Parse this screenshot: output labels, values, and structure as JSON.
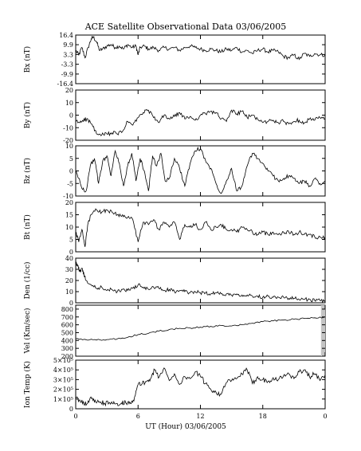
{
  "chart_data": {
    "type": "line",
    "title": "ACE Satellite Observational Data   03/06/2005",
    "xlabel": "UT (Hour)   03/06/2005",
    "x_ticks": [
      "0",
      "6",
      "12",
      "18",
      "0"
    ],
    "xlim": [
      0,
      24
    ],
    "grid": false,
    "panels": [
      {
        "name": "Bx",
        "ylabel": "Bx (nT)",
        "ylim": [
          -16.4,
          16.4
        ],
        "ytick_values": [
          16.4,
          9.9,
          3.3,
          -3.3,
          -9.9,
          -16.4
        ],
        "ytick_labels": [
          "16.4",
          "9.9",
          "3.3",
          "-3.3",
          "-9.9",
          "-16.4"
        ],
        "x": [
          0,
          0.3,
          0.6,
          0.9,
          1.2,
          1.5,
          1.7,
          2.0,
          2.3,
          2.6,
          3.0,
          3.4,
          3.8,
          4.2,
          4.6,
          5.0,
          5.4,
          5.8,
          6.0,
          6.2,
          6.6,
          7.0,
          7.5,
          8.0,
          8.5,
          9.0,
          9.5,
          10.0,
          10.5,
          11.0,
          11.5,
          12.0,
          12.5,
          13.0,
          13.5,
          14.0,
          14.5,
          15.0,
          15.5,
          16.0,
          16.5,
          17.0,
          17.5,
          18.0,
          18.5,
          19.0,
          19.5,
          20.0,
          20.5,
          21.0,
          21.5,
          22.0,
          22.5,
          23.0,
          23.5,
          24.0
        ],
        "y": [
          6,
          3,
          8,
          1,
          8,
          14,
          15,
          12,
          6,
          7,
          9,
          10,
          8,
          9,
          7,
          10,
          8,
          9,
          3,
          8,
          9,
          7,
          8,
          6,
          8,
          7,
          8,
          6,
          8,
          9,
          8,
          7,
          6,
          7,
          6,
          5,
          7,
          6,
          8,
          5,
          6,
          4,
          6,
          7,
          5,
          6,
          5,
          2,
          1,
          3,
          0,
          4,
          2,
          4,
          3,
          3
        ]
      },
      {
        "name": "By",
        "ylabel": "By (nT)",
        "ylim": [
          -20,
          20
        ],
        "ytick_values": [
          20,
          10,
          0,
          -10,
          -20
        ],
        "ytick_labels": [
          "20",
          "10",
          "0",
          "-10",
          "-20"
        ],
        "x": [
          0,
          0.4,
          0.8,
          1.2,
          1.6,
          2.0,
          2.5,
          3.0,
          3.5,
          4.0,
          4.5,
          5.0,
          5.5,
          6.0,
          6.5,
          7.0,
          7.5,
          8.0,
          8.5,
          9.0,
          9.5,
          10.0,
          10.5,
          11.0,
          11.5,
          12.0,
          12.5,
          13.0,
          13.5,
          14.0,
          14.5,
          15.0,
          15.5,
          16.0,
          16.5,
          17.0,
          17.5,
          18.0,
          18.5,
          19.0,
          19.5,
          20.0,
          20.5,
          21.0,
          21.5,
          22.0,
          22.5,
          23.0,
          23.5,
          24.0
        ],
        "y": [
          -5,
          -6,
          -3,
          -4,
          -8,
          -15,
          -16,
          -15,
          -14,
          -15,
          -13,
          -5,
          -8,
          -2,
          2,
          4,
          -2,
          -6,
          0,
          -3,
          -1,
          2,
          -3,
          -1,
          -4,
          0,
          1,
          3,
          2,
          -3,
          -5,
          4,
          1,
          3,
          -2,
          0,
          -3,
          -6,
          -5,
          -4,
          -6,
          -5,
          -7,
          -5,
          -4,
          -6,
          -3,
          -4,
          -2,
          -3
        ]
      },
      {
        "name": "Bz",
        "ylabel": "Bz (nT)",
        "ylim": [
          -10,
          10
        ],
        "ytick_values": [
          10,
          5,
          0,
          -5,
          -10
        ],
        "ytick_labels": [
          "10",
          "5",
          "0",
          "-5",
          "-10"
        ],
        "x": [
          0,
          0.3,
          0.6,
          1.0,
          1.4,
          1.8,
          2.2,
          2.6,
          3.0,
          3.4,
          3.8,
          4.2,
          4.6,
          5.0,
          5.4,
          5.8,
          6.2,
          6.6,
          7.0,
          7.4,
          7.8,
          8.2,
          8.6,
          9.0,
          9.5,
          10.0,
          10.5,
          11.0,
          11.5,
          12.0,
          12.5,
          13.0,
          13.5,
          14.0,
          14.5,
          15.0,
          15.5,
          16.0,
          16.5,
          17.0,
          17.5,
          18.0,
          18.5,
          19.0,
          19.5,
          20.0,
          20.5,
          21.0,
          21.5,
          22.0,
          22.5,
          23.0,
          23.5,
          24.0
        ],
        "y": [
          0,
          -3,
          -7,
          -8,
          2,
          5,
          -5,
          4,
          6,
          -2,
          8,
          3,
          -6,
          2,
          7,
          -4,
          5,
          0,
          -8,
          6,
          2,
          7,
          -4,
          -3,
          5,
          1,
          -6,
          3,
          8,
          9,
          4,
          1,
          -5,
          -9,
          -4,
          1,
          -8,
          -6,
          2,
          7,
          5,
          3,
          0,
          -2,
          -4,
          -3,
          -2,
          -3,
          -5,
          -4,
          -6,
          -3,
          -5,
          -4
        ]
      },
      {
        "name": "Bt",
        "ylabel": "Bt (nT)",
        "ylim": [
          0,
          20
        ],
        "ytick_values": [
          20,
          15,
          10,
          5,
          0
        ],
        "ytick_labels": [
          "20",
          "15",
          "10",
          "5",
          "0"
        ],
        "x": [
          0,
          0.3,
          0.6,
          0.9,
          1.2,
          1.5,
          2.0,
          2.5,
          3.0,
          3.5,
          4.0,
          4.5,
          5.0,
          5.5,
          6.0,
          6.5,
          7.0,
          7.5,
          8.0,
          8.5,
          9.0,
          9.5,
          10.0,
          10.5,
          11.0,
          11.5,
          12.0,
          12.5,
          13.0,
          13.5,
          14.0,
          14.5,
          15.0,
          15.5,
          16.0,
          16.5,
          17.0,
          17.5,
          18.0,
          18.5,
          19.0,
          19.5,
          20.0,
          20.5,
          21.0,
          21.5,
          22.0,
          22.5,
          23.0,
          23.5,
          24.0
        ],
        "y": [
          8,
          4,
          9,
          2,
          12,
          15,
          17,
          16,
          17,
          16,
          15,
          15,
          14,
          13,
          4,
          12,
          11,
          13,
          9,
          12,
          10,
          12,
          5,
          11,
          10,
          11,
          9,
          12,
          9,
          10,
          11,
          9,
          9,
          8,
          10,
          9,
          8,
          7,
          8,
          7,
          8,
          7,
          8,
          8,
          7,
          8,
          7,
          7,
          6,
          6,
          6
        ]
      },
      {
        "name": "Den",
        "ylabel": "Den (1/cc)",
        "ylim": [
          0,
          40
        ],
        "ytick_values": [
          40,
          30,
          20,
          10,
          0
        ],
        "ytick_labels": [
          "40",
          "30",
          "20",
          "10",
          "0"
        ],
        "x": [
          0,
          0.2,
          0.4,
          0.6,
          0.8,
          1.0,
          1.5,
          2.0,
          2.5,
          3.0,
          3.5,
          4.0,
          4.5,
          5.0,
          5.5,
          6.0,
          6.5,
          7.0,
          7.5,
          8.0,
          8.5,
          9.0,
          9.5,
          10.0,
          10.5,
          11.0,
          11.5,
          12.0,
          12.5,
          13.0,
          13.5,
          14.0,
          14.5,
          15.0,
          15.5,
          16.0,
          16.5,
          17.0,
          17.5,
          18.0,
          18.5,
          19.0,
          19.5,
          20.0,
          20.5,
          21.0,
          21.5,
          22.0,
          22.5,
          23.0,
          23.5,
          24.0
        ],
        "y": [
          36,
          33,
          28,
          31,
          25,
          20,
          16,
          13,
          14,
          11,
          12,
          10,
          12,
          11,
          13,
          16,
          14,
          12,
          14,
          13,
          11,
          12,
          10,
          11,
          10,
          9,
          10,
          9,
          9,
          8,
          9,
          8,
          8,
          7,
          8,
          7,
          7,
          6,
          6,
          5,
          6,
          5,
          5,
          5,
          4,
          4,
          3,
          3,
          3,
          2,
          2,
          2
        ]
      },
      {
        "name": "Vel",
        "ylabel": "Vel (Km/sec)",
        "ylim": [
          200,
          850
        ],
        "ytick_values": [
          800,
          700,
          600,
          500,
          400,
          300,
          200
        ],
        "ytick_labels": [
          "800",
          "700",
          "600",
          "500",
          "400",
          "300",
          "200"
        ],
        "x": [
          0,
          1,
          2,
          3,
          4,
          5,
          6,
          7,
          8,
          9,
          10,
          11,
          12,
          13,
          14,
          15,
          16,
          17,
          18,
          19,
          20,
          21,
          22,
          23,
          24
        ],
        "y": [
          420,
          410,
          405,
          412,
          420,
          440,
          475,
          490,
          520,
          540,
          555,
          560,
          570,
          580,
          590,
          585,
          600,
          620,
          640,
          650,
          660,
          670,
          680,
          690,
          700
        ],
        "data_end_hour": 23.6
      },
      {
        "name": "IonTemp",
        "ylabel": "Ion Temp (K)",
        "ylim": [
          0,
          500000
        ],
        "ytick_values": [
          500000,
          400000,
          300000,
          200000,
          100000,
          0
        ],
        "ytick_labels": [
          "5×10⁵",
          "4×10⁵",
          "3×10⁵",
          "2×10⁵",
          "1×10⁵",
          "0"
        ],
        "x": [
          0,
          0.4,
          0.8,
          1.2,
          1.6,
          2.0,
          2.4,
          2.8,
          3.2,
          3.6,
          4.0,
          4.4,
          4.8,
          5.2,
          5.6,
          6.0,
          6.4,
          6.8,
          7.2,
          7.6,
          8.0,
          8.5,
          9.0,
          9.5,
          10.0,
          10.5,
          11.0,
          11.5,
          12.0,
          12.5,
          13.0,
          13.5,
          14.0,
          14.5,
          15.0,
          15.5,
          16.0,
          16.5,
          17.0,
          17.5,
          18.0,
          18.5,
          19.0,
          19.5,
          20.0,
          20.5,
          21.0,
          21.5,
          22.0,
          22.5,
          23.0,
          23.5,
          24.0
        ],
        "y": [
          100000,
          90000,
          40000,
          80000,
          110000,
          60000,
          70000,
          55000,
          60000,
          50000,
          55000,
          60000,
          65000,
          70000,
          80000,
          250000,
          260000,
          280000,
          310000,
          400000,
          320000,
          420000,
          290000,
          360000,
          250000,
          330000,
          310000,
          380000,
          330000,
          260000,
          200000,
          170000,
          150000,
          270000,
          290000,
          310000,
          360000,
          400000,
          260000,
          330000,
          300000,
          280000,
          320000,
          300000,
          340000,
          360000,
          310000,
          380000,
          400000,
          330000,
          360000,
          290000,
          350000
        ]
      }
    ]
  }
}
